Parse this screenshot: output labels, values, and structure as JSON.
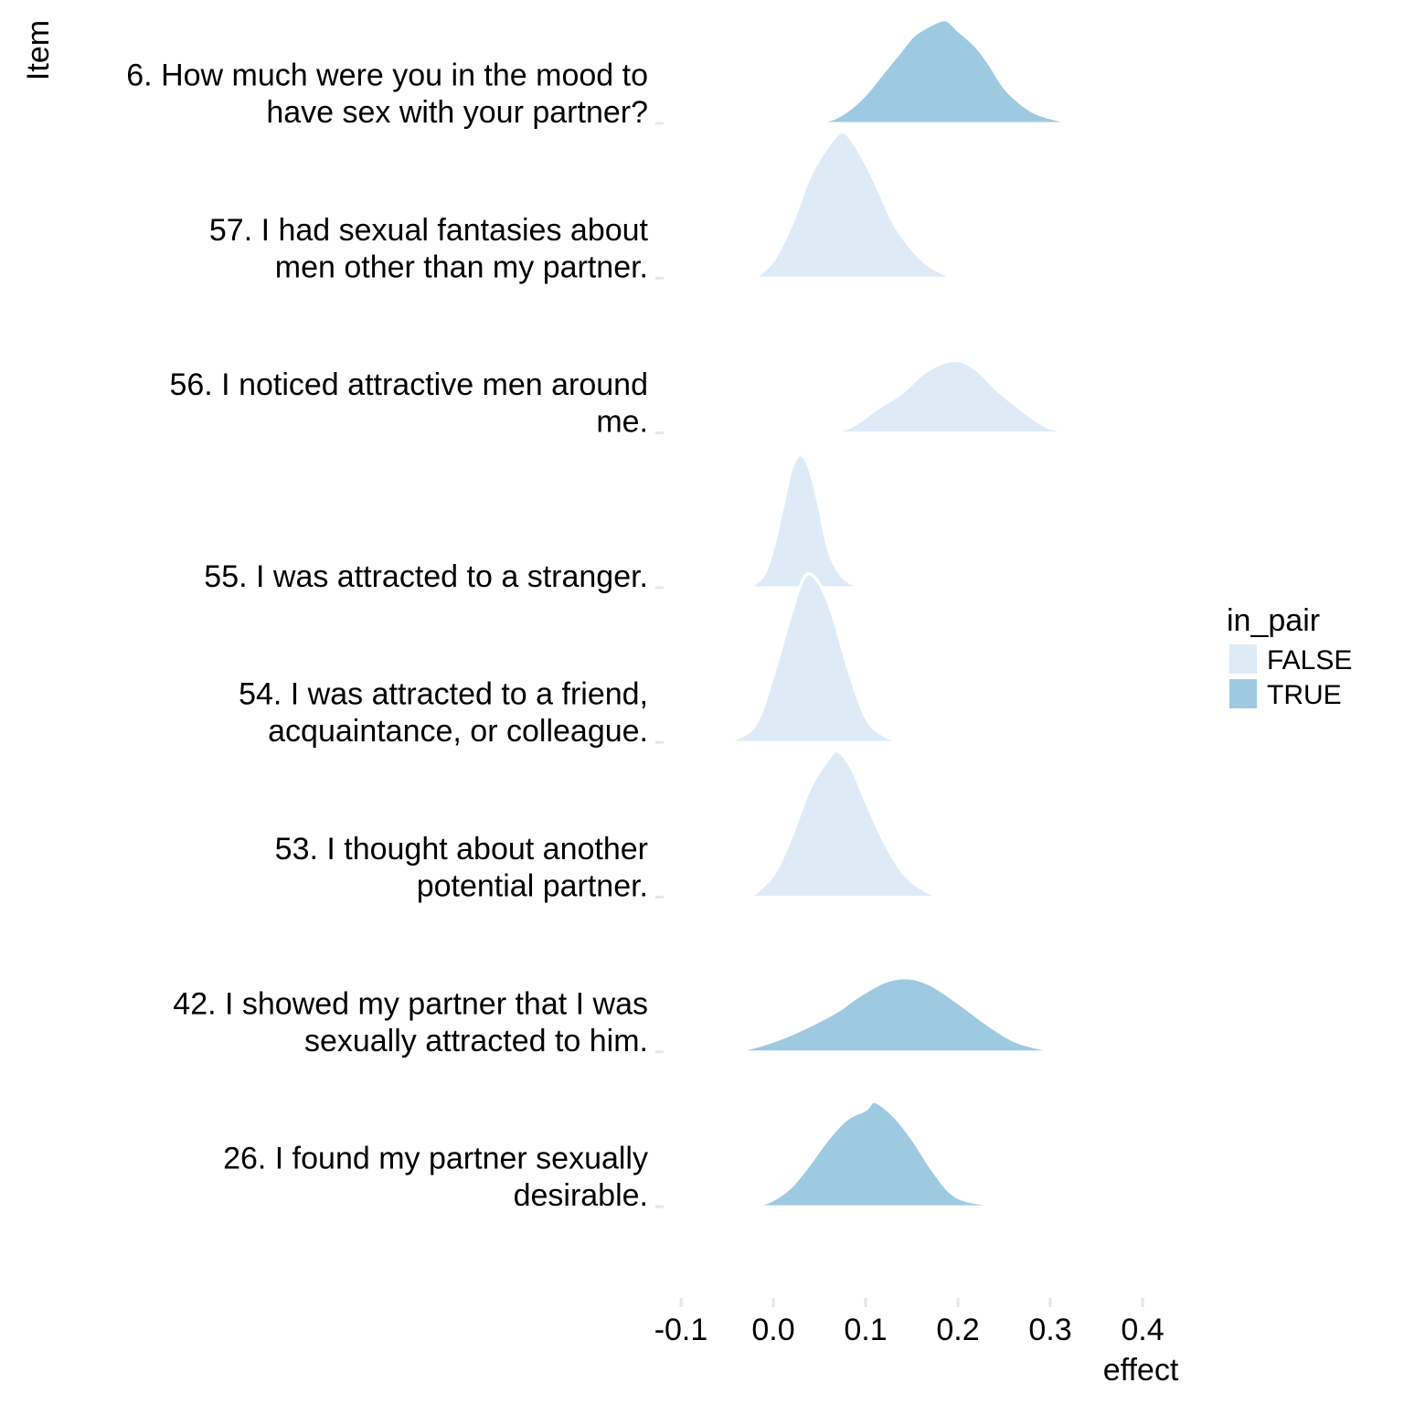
{
  "chart_data": {
    "type": "area",
    "subtype": "ridgeline-density",
    "x_label": "effect",
    "y_label": "Item",
    "xlim": [
      -0.1,
      0.4
    ],
    "x_ticks": [
      -0.1,
      0.0,
      0.1,
      0.2,
      0.3,
      0.4
    ],
    "x_tick_labels": [
      "-0.1",
      "0.0",
      "0.1",
      "0.2",
      "0.3",
      "0.4"
    ],
    "grid": false,
    "legend": {
      "title": "in_pair",
      "position": "right",
      "entries": [
        {
          "label": "FALSE",
          "color": "#deebf7"
        },
        {
          "label": "TRUE",
          "color": "#9ecae1"
        }
      ]
    },
    "items": [
      {
        "label_lines": [
          "6. How much were you in the mood to",
          "have sex with your partner?"
        ],
        "in_pair": "TRUE",
        "density": [
          [
            0.035,
            0
          ],
          [
            0.06,
            0.03
          ],
          [
            0.08,
            0.12
          ],
          [
            0.1,
            0.28
          ],
          [
            0.12,
            0.5
          ],
          [
            0.14,
            0.72
          ],
          [
            0.15,
            0.83
          ],
          [
            0.16,
            0.9
          ],
          [
            0.185,
            1.0
          ],
          [
            0.2,
            0.9
          ],
          [
            0.22,
            0.74
          ],
          [
            0.235,
            0.56
          ],
          [
            0.25,
            0.35
          ],
          [
            0.27,
            0.18
          ],
          [
            0.29,
            0.08
          ],
          [
            0.325,
            0
          ]
        ]
      },
      {
        "label_lines": [
          "57. I had sexual fantasies about",
          "men other than my partner."
        ],
        "in_pair": "FALSE",
        "density": [
          [
            -0.02,
            0
          ],
          [
            0.0,
            0.12
          ],
          [
            0.02,
            0.37
          ],
          [
            0.04,
            0.7
          ],
          [
            0.06,
            0.91
          ],
          [
            0.075,
            1.0
          ],
          [
            0.09,
            0.9
          ],
          [
            0.11,
            0.66
          ],
          [
            0.13,
            0.38
          ],
          [
            0.15,
            0.2
          ],
          [
            0.17,
            0.08
          ],
          [
            0.195,
            0
          ]
        ]
      },
      {
        "label_lines": [
          "56. I noticed attractive men around",
          "me."
        ],
        "in_pair": "FALSE",
        "density": [
          [
            0.05,
            0
          ],
          [
            0.07,
            0.02
          ],
          [
            0.09,
            0.1
          ],
          [
            0.11,
            0.25
          ],
          [
            0.14,
            0.45
          ],
          [
            0.16,
            0.64
          ],
          [
            0.18,
            0.76
          ],
          [
            0.2,
            0.8
          ],
          [
            0.22,
            0.7
          ],
          [
            0.245,
            0.45
          ],
          [
            0.27,
            0.25
          ],
          [
            0.29,
            0.1
          ],
          [
            0.31,
            0.03
          ],
          [
            0.355,
            0
          ]
        ]
      },
      {
        "label_lines": [
          "55. I was attracted to a stranger."
        ],
        "in_pair": "FALSE",
        "density": [
          [
            -0.025,
            0
          ],
          [
            -0.01,
            0.1
          ],
          [
            0.0,
            0.3
          ],
          [
            0.01,
            0.6
          ],
          [
            0.02,
            0.9
          ],
          [
            0.03,
            1.0
          ],
          [
            0.04,
            0.88
          ],
          [
            0.05,
            0.6
          ],
          [
            0.06,
            0.28
          ],
          [
            0.075,
            0.08
          ],
          [
            0.095,
            0
          ]
        ]
      },
      {
        "label_lines": [
          "54. I was attracted to a friend,",
          "acquaintance, or colleague."
        ],
        "in_pair": "FALSE",
        "density": [
          [
            -0.05,
            0
          ],
          [
            -0.02,
            0.1
          ],
          [
            0.0,
            0.4
          ],
          [
            0.02,
            0.78
          ],
          [
            0.035,
            1.0
          ],
          [
            0.05,
            0.95
          ],
          [
            0.065,
            0.75
          ],
          [
            0.08,
            0.46
          ],
          [
            0.1,
            0.15
          ],
          [
            0.12,
            0.04
          ],
          [
            0.14,
            0
          ]
        ]
      },
      {
        "label_lines": [
          "53. I thought about another",
          "potential partner."
        ],
        "in_pair": "FALSE",
        "density": [
          [
            -0.025,
            0
          ],
          [
            0.0,
            0.15
          ],
          [
            0.02,
            0.42
          ],
          [
            0.04,
            0.75
          ],
          [
            0.06,
            0.95
          ],
          [
            0.07,
            1.0
          ],
          [
            0.085,
            0.88
          ],
          [
            0.1,
            0.66
          ],
          [
            0.12,
            0.38
          ],
          [
            0.14,
            0.17
          ],
          [
            0.16,
            0.06
          ],
          [
            0.18,
            0
          ]
        ]
      },
      {
        "label_lines": [
          "42. I showed my partner that I was",
          "sexually attracted to him."
        ],
        "in_pair": "TRUE",
        "density": [
          [
            -0.045,
            0
          ],
          [
            -0.02,
            0.06
          ],
          [
            0.01,
            0.17
          ],
          [
            0.04,
            0.32
          ],
          [
            0.07,
            0.5
          ],
          [
            0.09,
            0.66
          ],
          [
            0.12,
            0.85
          ],
          [
            0.145,
            0.9
          ],
          [
            0.17,
            0.82
          ],
          [
            0.2,
            0.6
          ],
          [
            0.23,
            0.35
          ],
          [
            0.26,
            0.14
          ],
          [
            0.29,
            0.04
          ],
          [
            0.315,
            0
          ]
        ]
      },
      {
        "label_lines": [
          "26. I found my partner sexually",
          "desirable."
        ],
        "in_pair": "TRUE",
        "density": [
          [
            -0.02,
            0
          ],
          [
            0.0,
            0.06
          ],
          [
            0.02,
            0.18
          ],
          [
            0.04,
            0.38
          ],
          [
            0.06,
            0.6
          ],
          [
            0.08,
            0.77
          ],
          [
            0.1,
            0.85
          ],
          [
            0.11,
            0.92
          ],
          [
            0.13,
            0.8
          ],
          [
            0.15,
            0.6
          ],
          [
            0.17,
            0.35
          ],
          [
            0.19,
            0.14
          ],
          [
            0.21,
            0.05
          ],
          [
            0.255,
            0
          ]
        ]
      }
    ]
  }
}
